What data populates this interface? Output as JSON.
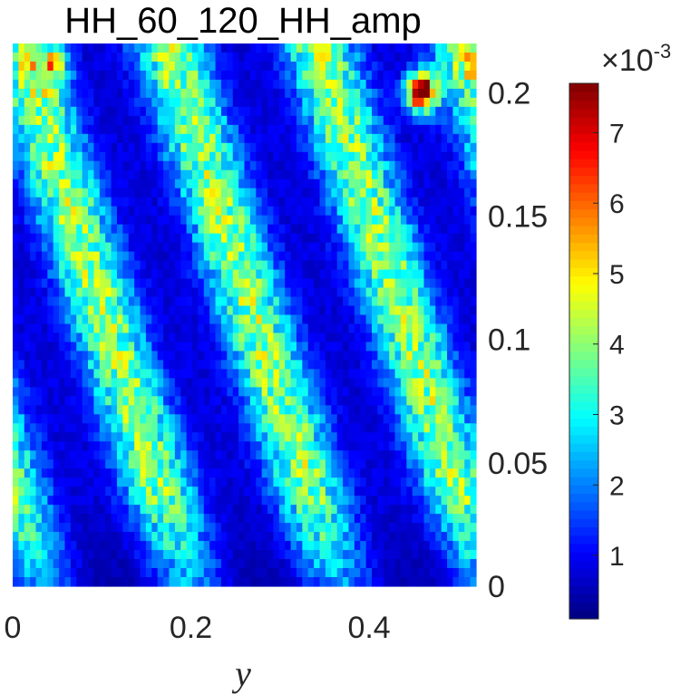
{
  "chart_data": {
    "type": "heatmap",
    "title": "HH_60_120_HH_amp",
    "xlabel": "y",
    "ylabel": "",
    "xlim": [
      0,
      0.52
    ],
    "ylim": [
      0,
      0.22
    ],
    "x_ticks": [
      0,
      0.2,
      0.4
    ],
    "x_tick_labels": [
      "0",
      "0.2",
      "0.4"
    ],
    "y_ticks": [
      0,
      0.05,
      0.1,
      0.15,
      0.2
    ],
    "y_tick_labels": [
      "0",
      "0.05",
      "0.1",
      "0.15",
      "0.2"
    ],
    "y_axis_side": "right",
    "colormap": "jet",
    "colorbar": {
      "range": [
        0.0001,
        0.0077
      ],
      "ticks": [
        1,
        2,
        3,
        4,
        5,
        6,
        7
      ],
      "tick_labels": [
        "1",
        "2",
        "3",
        "4",
        "5",
        "6",
        "7"
      ],
      "multiplier_base": "×10",
      "multiplier_exponent": "-3"
    },
    "grid_columns": 80,
    "grid_rows": 60,
    "hot_spots": [
      {
        "y": 0.46,
        "x": 0.2,
        "value": 0.0075
      },
      {
        "y": 0.04,
        "x": 0.21,
        "value": 0.006
      },
      {
        "y": 0.51,
        "x": 0.215,
        "value": 0.005
      }
    ]
  }
}
